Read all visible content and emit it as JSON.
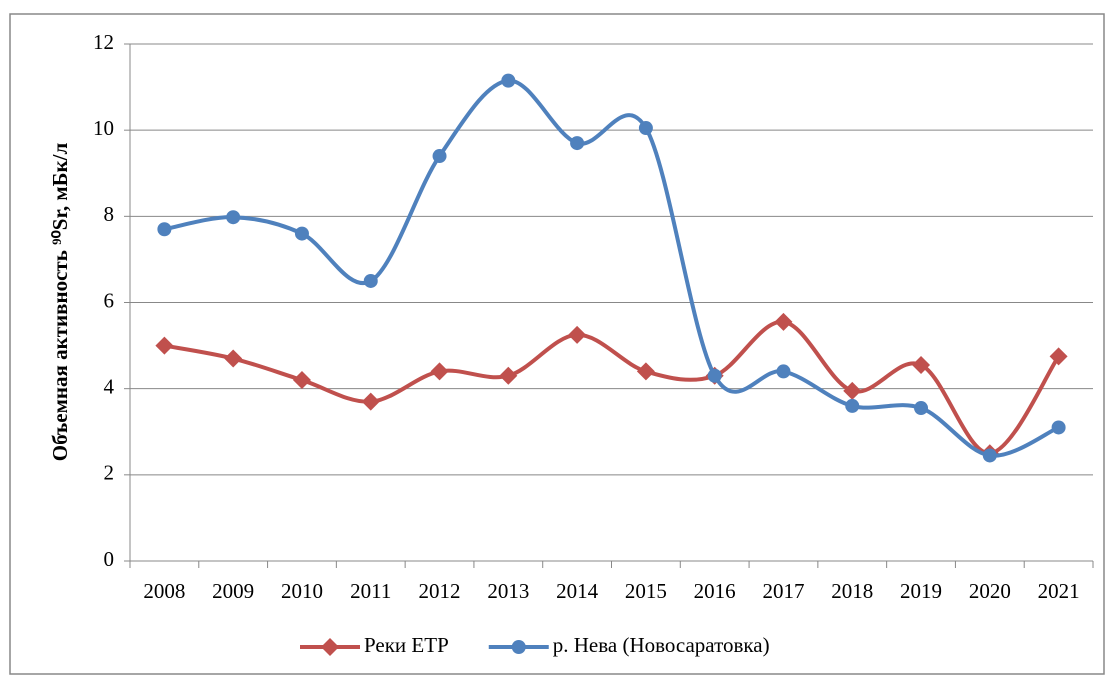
{
  "chart_data": {
    "type": "line",
    "ylabel": "Объемная активность ⁹⁰Sr, мБк/л",
    "categories": [
      "2008",
      "2009",
      "2010",
      "2011",
      "2012",
      "2013",
      "2014",
      "2015",
      "2016",
      "2017",
      "2018",
      "2019",
      "2020",
      "2021"
    ],
    "series": [
      {
        "name": "Реки ЕТР",
        "color": "#c0504d",
        "marker": "diamond",
        "values": [
          5.0,
          4.7,
          4.2,
          3.7,
          4.4,
          4.3,
          5.25,
          4.4,
          4.3,
          5.55,
          3.95,
          4.55,
          2.5,
          4.75
        ]
      },
      {
        "name": "р. Нева (Новосаратовка)",
        "color": "#4f81bd",
        "marker": "circle",
        "values": [
          7.7,
          7.98,
          7.6,
          6.5,
          9.4,
          11.15,
          9.7,
          10.05,
          4.3,
          4.4,
          3.6,
          3.55,
          2.45,
          3.1
        ]
      }
    ],
    "ylim": [
      0,
      12
    ],
    "yticks": [
      0,
      2,
      4,
      6,
      8,
      10,
      12
    ],
    "grid": true,
    "smooth": true,
    "legend": "bottom"
  }
}
